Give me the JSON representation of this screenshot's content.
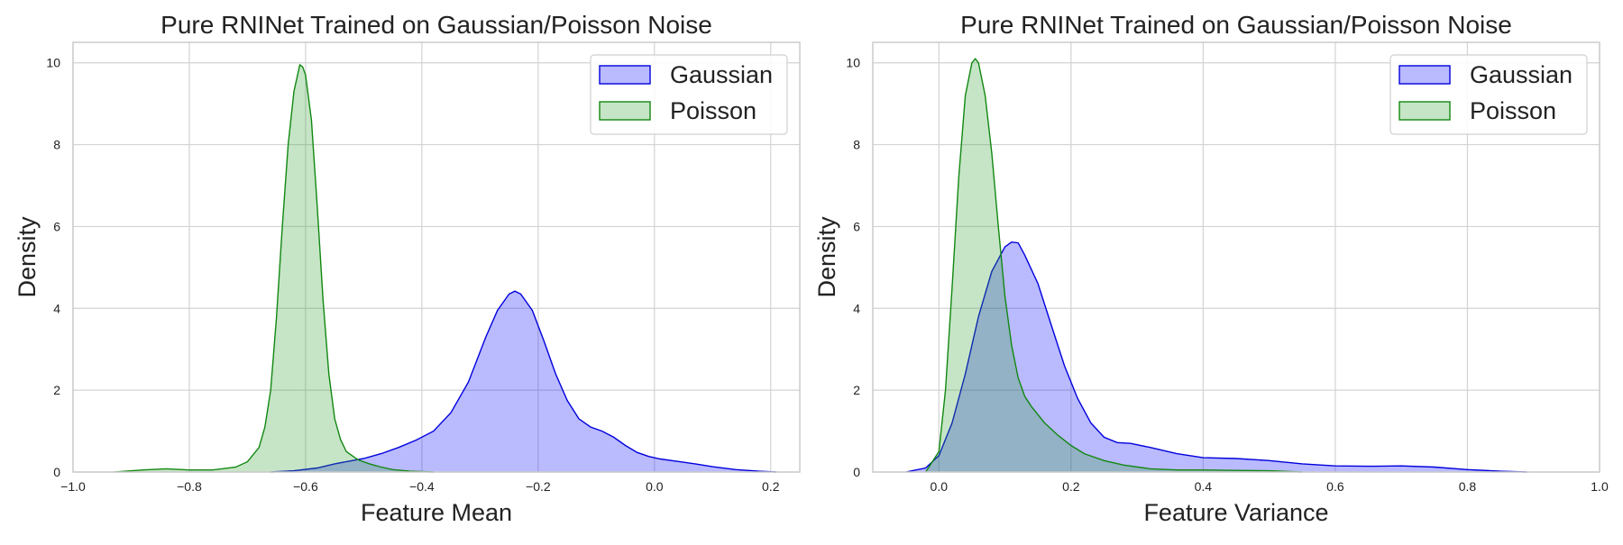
{
  "chart_data": [
    {
      "type": "area",
      "title": "Pure RNINet Trained on Gaussian/Poisson Noise",
      "xlabel": "Feature Mean",
      "ylabel": "Density",
      "xlim": [
        -1.0,
        0.25
      ],
      "ylim": [
        0,
        10.5
      ],
      "xticks": [
        "−1.0",
        "−0.8",
        "−0.6",
        "−0.4",
        "−0.2",
        "0.0",
        "0.2"
      ],
      "xtick_values": [
        -1.0,
        -0.8,
        -0.6,
        -0.4,
        -0.2,
        0.0,
        0.2
      ],
      "yticks": [
        "0",
        "2",
        "4",
        "6",
        "8",
        "10"
      ],
      "ytick_values": [
        0,
        2,
        4,
        6,
        8,
        10
      ],
      "grid": true,
      "legend": "top-right",
      "series": [
        {
          "name": "Gaussian",
          "line_color": "#0000dd",
          "fill_color": "#0000ff",
          "x": [
            -0.66,
            -0.62,
            -0.58,
            -0.55,
            -0.52,
            -0.5,
            -0.47,
            -0.44,
            -0.41,
            -0.38,
            -0.35,
            -0.32,
            -0.29,
            -0.27,
            -0.25,
            -0.24,
            -0.23,
            -0.21,
            -0.19,
            -0.17,
            -0.15,
            -0.13,
            -0.11,
            -0.09,
            -0.07,
            -0.05,
            -0.03,
            -0.01,
            0.01,
            0.04,
            0.07,
            0.1,
            0.14,
            0.18,
            0.21
          ],
          "y": [
            0.0,
            0.03,
            0.1,
            0.2,
            0.28,
            0.33,
            0.45,
            0.6,
            0.78,
            1.0,
            1.45,
            2.2,
            3.3,
            3.95,
            4.35,
            4.42,
            4.35,
            3.95,
            3.2,
            2.4,
            1.75,
            1.3,
            1.1,
            1.0,
            0.85,
            0.65,
            0.48,
            0.38,
            0.32,
            0.26,
            0.2,
            0.13,
            0.06,
            0.02,
            0.0
          ]
        },
        {
          "name": "Poisson",
          "line_color": "#118811",
          "fill_color": "#2ca02c",
          "x": [
            -0.93,
            -0.88,
            -0.84,
            -0.8,
            -0.76,
            -0.72,
            -0.7,
            -0.68,
            -0.67,
            -0.66,
            -0.65,
            -0.64,
            -0.63,
            -0.62,
            -0.61,
            -0.605,
            -0.6,
            -0.59,
            -0.58,
            -0.57,
            -0.56,
            -0.55,
            -0.54,
            -0.53,
            -0.51,
            -0.49,
            -0.47,
            -0.45,
            -0.42,
            -0.38
          ],
          "y": [
            0.0,
            0.05,
            0.08,
            0.05,
            0.05,
            0.12,
            0.25,
            0.6,
            1.1,
            2.0,
            3.8,
            6.0,
            8.0,
            9.3,
            9.95,
            9.9,
            9.7,
            8.6,
            6.5,
            4.2,
            2.4,
            1.3,
            0.8,
            0.5,
            0.3,
            0.2,
            0.12,
            0.06,
            0.02,
            0.0
          ]
        }
      ]
    },
    {
      "type": "area",
      "title": "Pure RNINet Trained on Gaussian/Poisson Noise",
      "xlabel": "Feature Variance",
      "ylabel": "Density",
      "xlim": [
        -0.1,
        1.0
      ],
      "ylim": [
        0,
        10.5
      ],
      "xticks": [
        "0.0",
        "0.2",
        "0.4",
        "0.6",
        "0.8",
        "1.0"
      ],
      "xtick_values": [
        0.0,
        0.2,
        0.4,
        0.6,
        0.8,
        1.0
      ],
      "yticks": [
        "0",
        "2",
        "4",
        "6",
        "8",
        "10"
      ],
      "ytick_values": [
        0,
        2,
        4,
        6,
        8,
        10
      ],
      "grid": true,
      "legend": "top-right",
      "series": [
        {
          "name": "Gaussian",
          "line_color": "#0000dd",
          "fill_color": "#0000ff",
          "x": [
            -0.05,
            -0.02,
            0.0,
            0.02,
            0.04,
            0.06,
            0.08,
            0.1,
            0.11,
            0.12,
            0.13,
            0.15,
            0.17,
            0.19,
            0.21,
            0.23,
            0.25,
            0.27,
            0.29,
            0.32,
            0.36,
            0.4,
            0.45,
            0.5,
            0.55,
            0.6,
            0.65,
            0.7,
            0.75,
            0.8,
            0.85,
            0.89
          ],
          "y": [
            0.0,
            0.1,
            0.4,
            1.2,
            2.4,
            3.8,
            4.9,
            5.5,
            5.62,
            5.6,
            5.3,
            4.6,
            3.6,
            2.6,
            1.8,
            1.2,
            0.85,
            0.72,
            0.7,
            0.6,
            0.45,
            0.35,
            0.33,
            0.28,
            0.2,
            0.15,
            0.14,
            0.15,
            0.12,
            0.06,
            0.02,
            0.0
          ]
        },
        {
          "name": "Poisson",
          "line_color": "#118811",
          "fill_color": "#2ca02c",
          "x": [
            -0.02,
            0.0,
            0.01,
            0.02,
            0.03,
            0.04,
            0.05,
            0.055,
            0.06,
            0.07,
            0.08,
            0.09,
            0.1,
            0.11,
            0.12,
            0.13,
            0.14,
            0.16,
            0.18,
            0.2,
            0.22,
            0.25,
            0.28,
            0.32,
            0.36,
            0.4,
            0.45,
            0.5,
            0.55
          ],
          "y": [
            0.0,
            0.5,
            2.0,
            4.5,
            7.2,
            9.2,
            10.0,
            10.1,
            10.0,
            9.2,
            7.8,
            6.0,
            4.3,
            3.1,
            2.3,
            1.85,
            1.6,
            1.2,
            0.9,
            0.65,
            0.45,
            0.28,
            0.17,
            0.08,
            0.05,
            0.05,
            0.04,
            0.03,
            0.0
          ]
        }
      ]
    }
  ]
}
